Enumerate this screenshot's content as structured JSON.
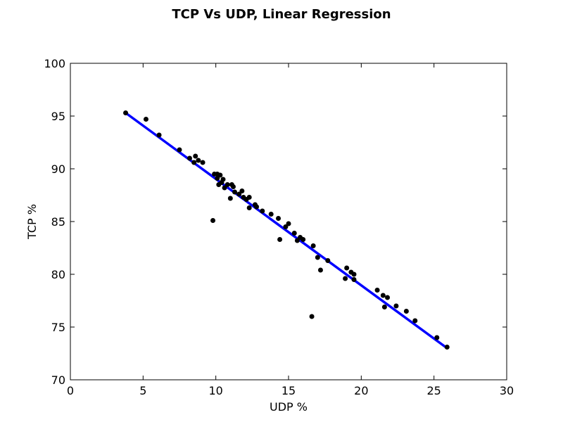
{
  "chart_data": {
    "type": "scatter",
    "title": "TCP Vs UDP, Linear Regression",
    "xlabel": "UDP %",
    "ylabel": "TCP %",
    "xlim": [
      0,
      30
    ],
    "ylim": [
      70,
      100
    ],
    "xticks": [
      0,
      5,
      10,
      15,
      20,
      25,
      30
    ],
    "yticks": [
      70,
      75,
      80,
      85,
      90,
      95,
      100
    ],
    "grid": false,
    "legend": "none",
    "colors": {
      "points": "#000000",
      "regression_line": "#0000ff"
    },
    "points": [
      [
        3.8,
        95.3
      ],
      [
        5.2,
        94.7
      ],
      [
        6.1,
        93.2
      ],
      [
        7.5,
        91.8
      ],
      [
        8.2,
        91.0
      ],
      [
        8.5,
        90.6
      ],
      [
        8.6,
        91.2
      ],
      [
        8.8,
        90.8
      ],
      [
        9.1,
        90.6
      ],
      [
        9.8,
        85.1
      ],
      [
        9.9,
        89.5
      ],
      [
        10.1,
        89.5
      ],
      [
        10.1,
        89.1
      ],
      [
        10.2,
        88.5
      ],
      [
        10.3,
        89.4
      ],
      [
        10.4,
        88.7
      ],
      [
        10.5,
        89.0
      ],
      [
        10.6,
        88.2
      ],
      [
        10.8,
        88.5
      ],
      [
        11.0,
        87.2
      ],
      [
        11.1,
        88.5
      ],
      [
        11.2,
        88.3
      ],
      [
        11.3,
        87.8
      ],
      [
        11.6,
        87.6
      ],
      [
        11.8,
        87.9
      ],
      [
        11.9,
        87.3
      ],
      [
        12.1,
        87.1
      ],
      [
        12.3,
        87.3
      ],
      [
        12.3,
        86.3
      ],
      [
        12.7,
        86.6
      ],
      [
        12.8,
        86.4
      ],
      [
        13.2,
        86.0
      ],
      [
        13.8,
        85.7
      ],
      [
        14.3,
        85.3
      ],
      [
        14.4,
        83.3
      ],
      [
        14.8,
        84.5
      ],
      [
        15.0,
        84.8
      ],
      [
        15.4,
        83.9
      ],
      [
        15.6,
        83.2
      ],
      [
        15.8,
        83.5
      ],
      [
        16.0,
        83.3
      ],
      [
        16.6,
        76.0
      ],
      [
        16.7,
        82.7
      ],
      [
        17.0,
        81.6
      ],
      [
        17.2,
        80.4
      ],
      [
        17.7,
        81.3
      ],
      [
        18.9,
        79.6
      ],
      [
        19.0,
        80.6
      ],
      [
        19.3,
        80.2
      ],
      [
        19.5,
        80.0
      ],
      [
        19.5,
        79.5
      ],
      [
        21.1,
        78.5
      ],
      [
        21.5,
        78.0
      ],
      [
        21.6,
        76.9
      ],
      [
        21.8,
        77.8
      ],
      [
        22.4,
        77.0
      ],
      [
        23.1,
        76.5
      ],
      [
        23.7,
        75.6
      ],
      [
        25.2,
        74.0
      ],
      [
        25.9,
        73.1
      ]
    ],
    "regression_line": {
      "x": [
        3.8,
        25.9
      ],
      "y": [
        95.3,
        73.0
      ]
    }
  }
}
